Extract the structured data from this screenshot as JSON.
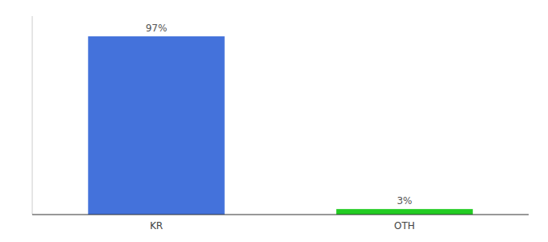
{
  "chart_data": {
    "type": "bar",
    "categories": [
      "KR",
      "OTH"
    ],
    "values": [
      97,
      3
    ],
    "value_labels": [
      "97%",
      "3%"
    ],
    "colors": [
      "#4472db",
      "#22cc22"
    ],
    "ylim": [
      0,
      108
    ],
    "data_labels": true,
    "tick_labels": "x"
  }
}
